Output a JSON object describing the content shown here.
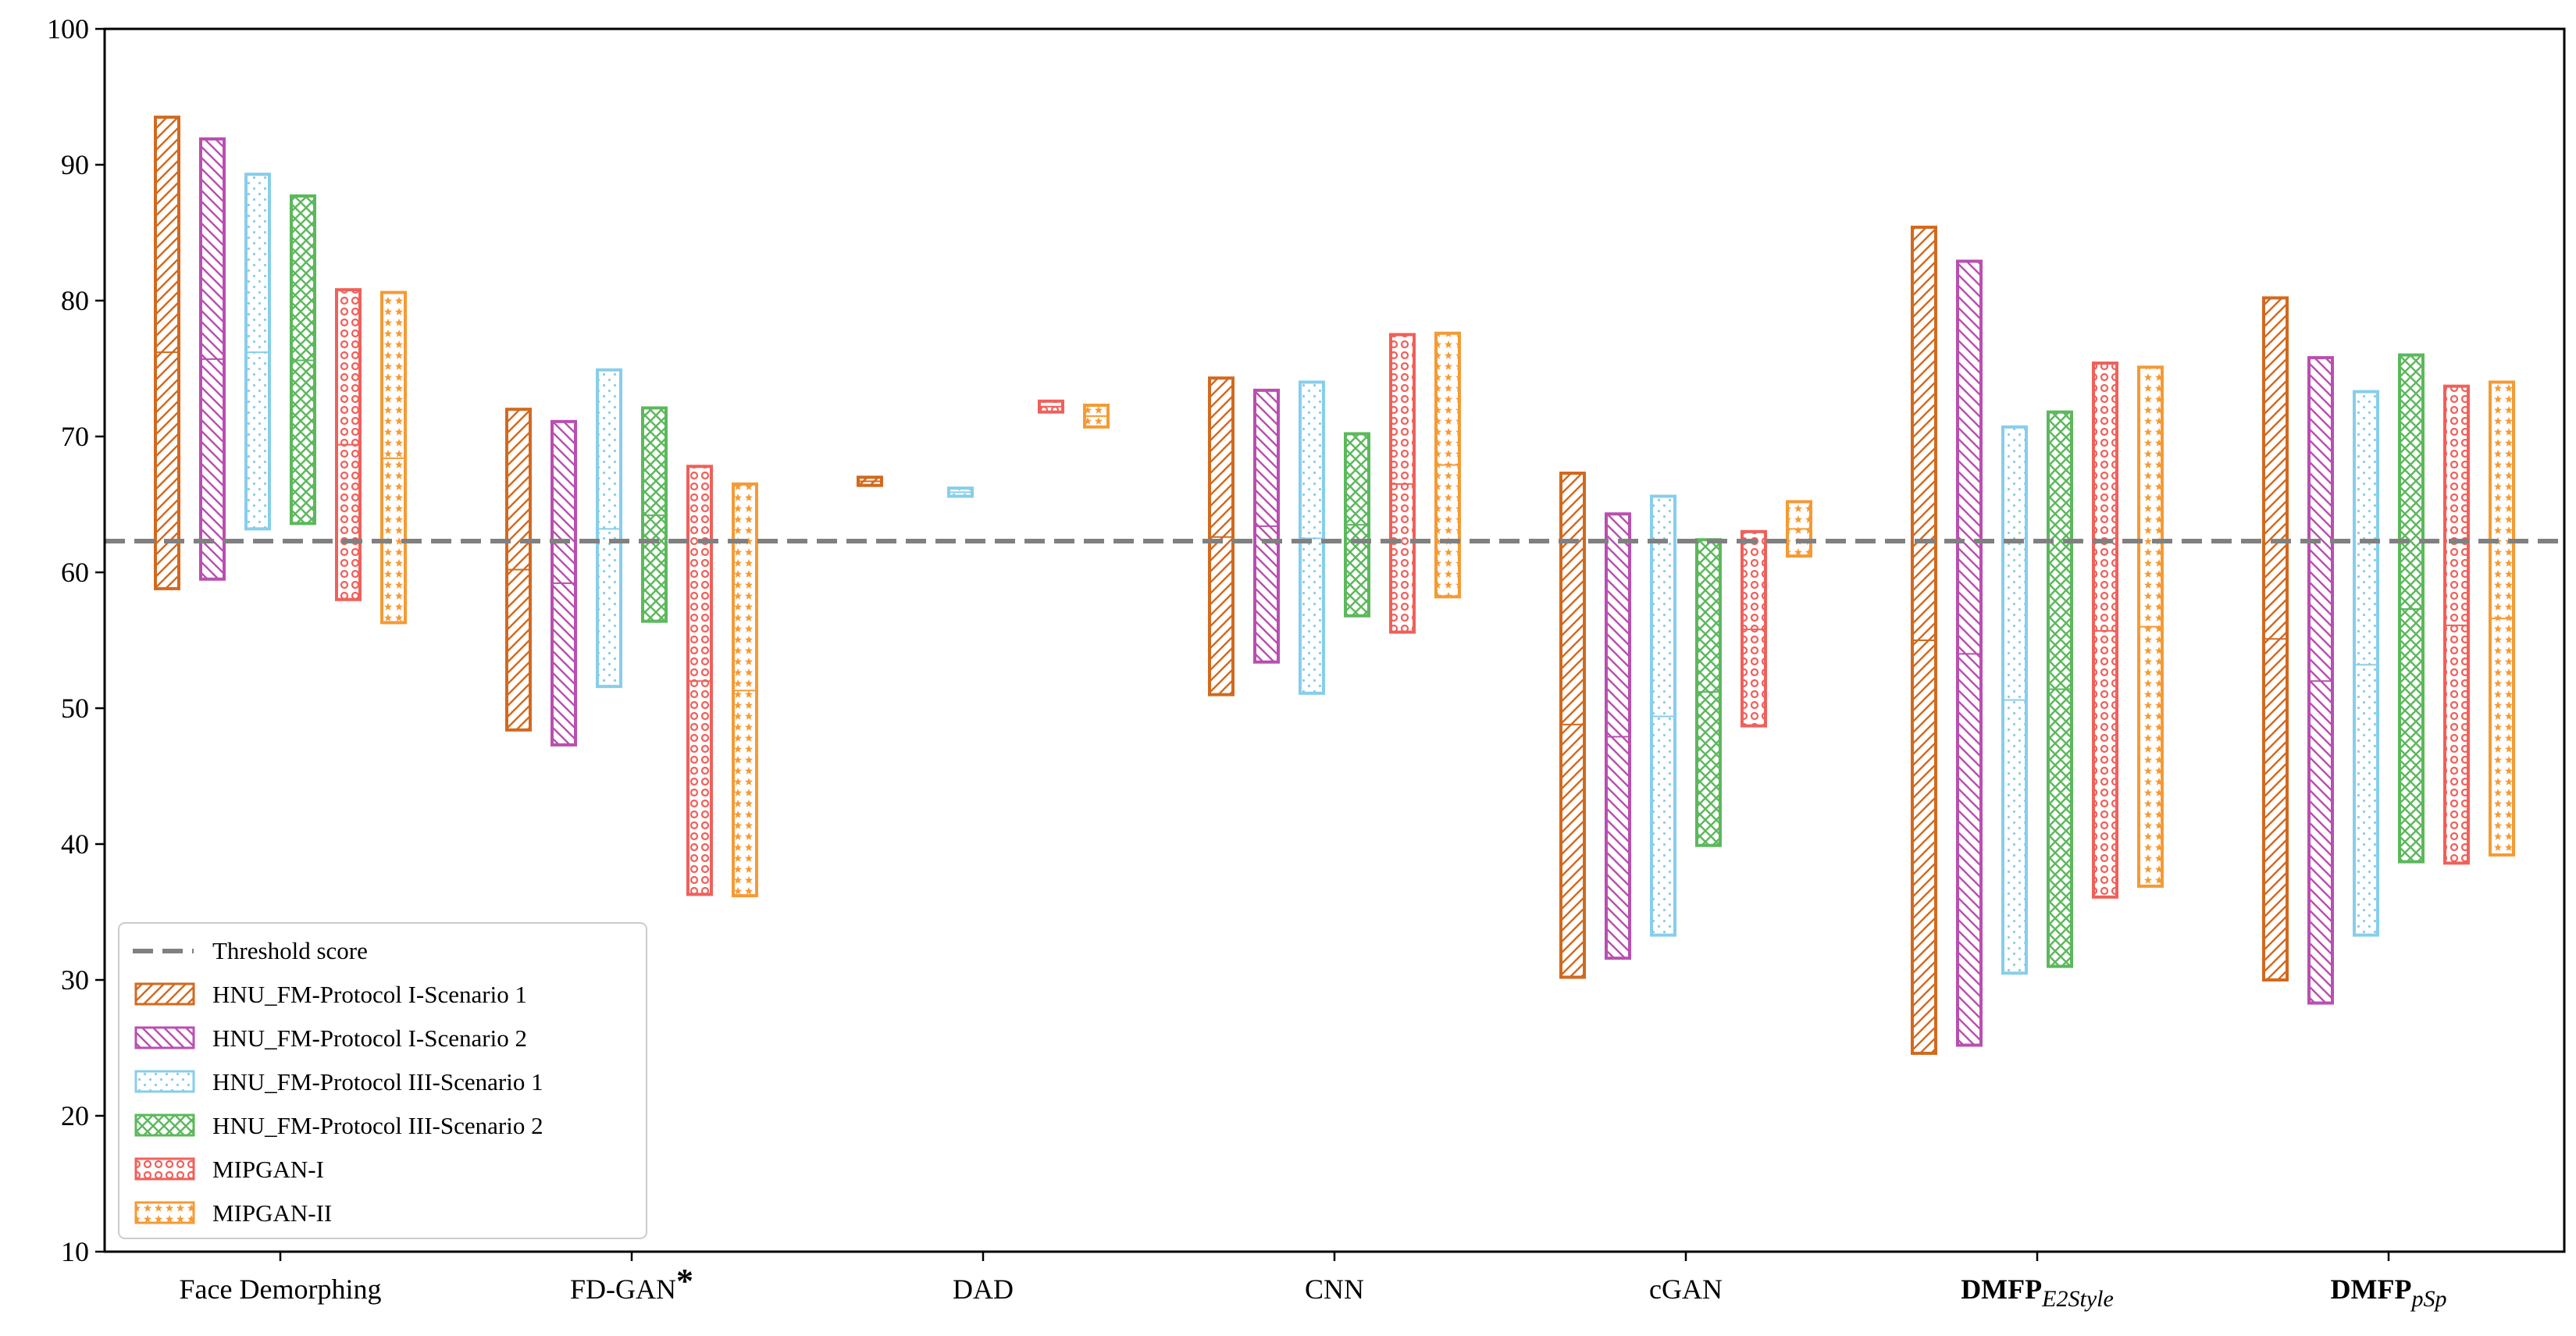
{
  "chart_data": {
    "type": "range-bar",
    "title": "",
    "xlabel": "",
    "ylabel": "",
    "ylim": [
      10,
      100
    ],
    "yticks": [
      10,
      20,
      30,
      40,
      50,
      60,
      70,
      80,
      90,
      100
    ],
    "grid": false,
    "legend_position": "bottom-left",
    "threshold": {
      "name": "Threshold score",
      "value": 62.3,
      "color": "#808080"
    },
    "categories": [
      {
        "id": "face-demorphing",
        "label": "Face Demorphing",
        "base": "",
        "sub": "",
        "marker": ""
      },
      {
        "id": "fd-gan",
        "label": "FD-GAN",
        "base": "",
        "sub": "",
        "marker": "*"
      },
      {
        "id": "dad",
        "label": "DAD",
        "base": "",
        "sub": "",
        "marker": ""
      },
      {
        "id": "cnn",
        "label": "CNN",
        "base": "",
        "sub": "",
        "marker": ""
      },
      {
        "id": "cgan",
        "label": "cGAN",
        "base": "",
        "sub": "",
        "marker": ""
      },
      {
        "id": "dmfp-e2style",
        "label": "",
        "base": "DMFP",
        "sub": "E2Style",
        "marker": ""
      },
      {
        "id": "dmfp-psp",
        "label": "",
        "base": "DMFP",
        "sub": "pSp",
        "marker": ""
      }
    ],
    "series": [
      {
        "name": "HNU_FM-Protocol I-Scenario 1",
        "color": "#D2691E",
        "pattern": "diag-right",
        "ranges": [
          [
            58.8,
            93.5,
            76.2
          ],
          [
            48.4,
            72.0,
            60.2
          ],
          [
            66.4,
            67.0,
            66.7
          ],
          [
            51.0,
            74.3,
            62.6
          ],
          [
            30.2,
            67.3,
            48.8
          ],
          [
            24.6,
            85.4,
            55.0
          ],
          [
            30.0,
            80.2,
            55.1
          ]
        ]
      },
      {
        "name": "HNU_FM-Protocol I-Scenario 2",
        "color": "#B94FB0",
        "pattern": "diag-left",
        "ranges": [
          [
            59.5,
            91.9,
            75.7
          ],
          [
            47.3,
            71.1,
            59.2
          ],
          null,
          [
            53.4,
            73.4,
            63.4
          ],
          [
            31.6,
            64.3,
            47.9
          ],
          [
            25.2,
            82.9,
            54.0
          ],
          [
            28.3,
            75.8,
            52.0
          ]
        ]
      },
      {
        "name": "HNU_FM-Protocol III-Scenario 1",
        "color": "#87CEEB",
        "pattern": "dots",
        "ranges": [
          [
            63.2,
            89.3,
            76.2
          ],
          [
            51.6,
            74.9,
            63.2
          ],
          [
            65.6,
            66.2,
            65.9
          ],
          [
            51.1,
            74.0,
            62.5
          ],
          [
            33.3,
            65.6,
            49.4
          ],
          [
            30.5,
            70.7,
            50.6
          ],
          [
            33.3,
            73.3,
            53.2
          ]
        ]
      },
      {
        "name": "HNU_FM-Protocol III-Scenario 2",
        "color": "#5CB85C",
        "pattern": "cross",
        "ranges": [
          [
            63.6,
            87.7,
            75.6
          ],
          [
            56.4,
            72.1,
            64.2
          ],
          null,
          [
            56.8,
            70.2,
            63.5
          ],
          [
            39.9,
            62.4,
            51.2
          ],
          [
            31.0,
            71.8,
            51.4
          ],
          [
            38.7,
            76.0,
            57.3
          ]
        ]
      },
      {
        "name": "MIPGAN-I",
        "color": "#F0605A",
        "pattern": "circles",
        "ranges": [
          [
            58.0,
            80.8,
            69.4
          ],
          [
            36.3,
            67.8,
            52.0
          ],
          [
            71.8,
            72.6,
            72.2
          ],
          [
            55.6,
            77.5,
            66.5
          ],
          [
            48.7,
            63.0,
            55.8
          ],
          [
            36.1,
            75.4,
            55.7
          ],
          [
            38.6,
            73.7,
            56.1
          ]
        ]
      },
      {
        "name": "MIPGAN-II",
        "color": "#F59A34",
        "pattern": "stars",
        "ranges": [
          [
            56.3,
            80.6,
            68.4
          ],
          [
            36.2,
            66.5,
            51.3
          ],
          [
            70.7,
            72.3,
            71.5
          ],
          [
            58.2,
            77.6,
            67.9
          ],
          [
            61.2,
            65.2,
            63.2
          ],
          [
            36.9,
            75.1,
            56.0
          ],
          [
            39.2,
            74.0,
            56.6
          ]
        ]
      }
    ]
  }
}
